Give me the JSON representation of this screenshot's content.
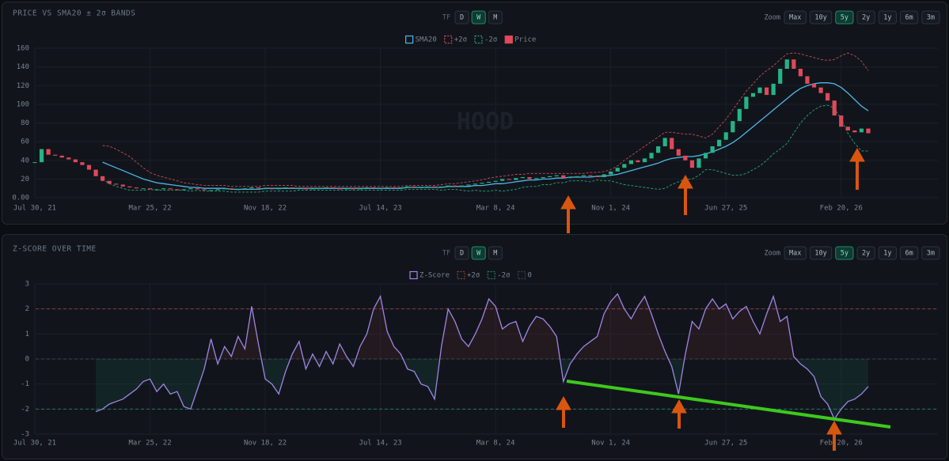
{
  "chart_data": [
    {
      "type": "candlestick",
      "title": "PRICE VS SMA20 ± 2σ BANDS",
      "watermark": "HOOD",
      "toolbar": {
        "tf_label": "TF",
        "timeframes": [
          "D",
          "W",
          "M"
        ],
        "active_timeframe": 1,
        "zoom_label": "Zoom",
        "zoom_options": [
          "Max",
          "10y",
          "5y",
          "2y",
          "1y",
          "6m",
          "3m"
        ],
        "active_zoom": 2
      },
      "categories": [
        "Jul 30, 21",
        null,
        null,
        null,
        null,
        null,
        null,
        null,
        null,
        null,
        null,
        null,
        null,
        null,
        null,
        null,
        null,
        "Mar 25, 22",
        null,
        null,
        null,
        null,
        null,
        null,
        null,
        null,
        null,
        null,
        null,
        null,
        null,
        null,
        null,
        null,
        "Nov 18, 22",
        null,
        null,
        null,
        null,
        null,
        null,
        null,
        null,
        null,
        null,
        null,
        null,
        null,
        null,
        null,
        null,
        "Jul 14, 23",
        null,
        null,
        null,
        null,
        null,
        null,
        null,
        null,
        null,
        null,
        null,
        null,
        null,
        null,
        null,
        null,
        "Mar 8, 24",
        null,
        null,
        null,
        null,
        null,
        null,
        null,
        null,
        null,
        null,
        null,
        null,
        null,
        null,
        null,
        null,
        "Nov 1, 24",
        null,
        null,
        null,
        null,
        null,
        null,
        null,
        null,
        null,
        null,
        null,
        null,
        null,
        null,
        null,
        null,
        "Jun 27, 25",
        null,
        null,
        null,
        null,
        null,
        null,
        null,
        null,
        null,
        null,
        null,
        null,
        null,
        null,
        null,
        null,
        "Feb 20, 26",
        null,
        null,
        null,
        null
      ],
      "ylim": [
        0,
        160
      ],
      "yticks": [
        {
          "value": 0,
          "label": "0.00"
        },
        20,
        40,
        60,
        80,
        100,
        120,
        140,
        160
      ],
      "grid": true,
      "series": [
        {
          "name": "SMA20",
          "color": "#4fb6e8",
          "dashed": false,
          "values": [
            null,
            null,
            null,
            null,
            null,
            null,
            null,
            null,
            null,
            null,
            38,
            35,
            32,
            29,
            26,
            23,
            20,
            18,
            16,
            15,
            14,
            13,
            12,
            11,
            11,
            10,
            10,
            10,
            10,
            9,
            9,
            9,
            9,
            9,
            10,
            10,
            10,
            10,
            10,
            10,
            10,
            10,
            10,
            10,
            10,
            10,
            10,
            10,
            10,
            10,
            10,
            10,
            10,
            10,
            10,
            11,
            11,
            11,
            11,
            11,
            11,
            12,
            12,
            12,
            12,
            13,
            13,
            14,
            15,
            15,
            16,
            17,
            18,
            19,
            19,
            20,
            20,
            21,
            21,
            22,
            22,
            22,
            22,
            23,
            23,
            24,
            25,
            27,
            29,
            31,
            33,
            35,
            37,
            40,
            42,
            43,
            44,
            44,
            45,
            47,
            49,
            52,
            55,
            59,
            64,
            70,
            76,
            82,
            88,
            94,
            100,
            106,
            112,
            117,
            120,
            122,
            123,
            123,
            122,
            118,
            112,
            105,
            98,
            93
          ]
        },
        {
          "name": "+2σ",
          "color": "#c94a55",
          "dashed": true,
          "values": [
            null,
            null,
            null,
            null,
            null,
            null,
            null,
            null,
            null,
            null,
            56,
            55,
            52,
            48,
            44,
            38,
            32,
            27,
            24,
            22,
            20,
            18,
            16,
            15,
            14,
            13,
            13,
            13,
            13,
            12,
            12,
            12,
            12,
            12,
            13,
            13,
            13,
            13,
            13,
            12,
            12,
            12,
            12,
            12,
            12,
            12,
            12,
            12,
            12,
            12,
            12,
            12,
            12,
            12,
            12,
            13,
            13,
            13,
            13,
            13,
            14,
            15,
            15,
            16,
            17,
            18,
            19,
            21,
            22,
            23,
            24,
            25,
            25,
            26,
            26,
            26,
            26,
            26,
            26,
            26,
            26,
            26,
            27,
            27,
            28,
            30,
            34,
            40,
            45,
            50,
            55,
            60,
            65,
            70,
            70,
            69,
            68,
            68,
            66,
            64,
            68,
            76,
            84,
            94,
            104,
            114,
            122,
            130,
            136,
            141,
            148,
            154,
            155,
            154,
            152,
            150,
            148,
            147,
            148,
            152,
            155,
            152,
            146,
            136
          ]
        },
        {
          "name": "-2σ",
          "color": "#2aa27a",
          "dashed": true,
          "values": [
            null,
            null,
            null,
            null,
            null,
            null,
            null,
            null,
            null,
            null,
            20,
            15,
            12,
            10,
            8,
            8,
            8,
            9,
            8,
            8,
            8,
            8,
            8,
            7,
            8,
            7,
            7,
            7,
            7,
            6,
            6,
            6,
            6,
            6,
            7,
            7,
            7,
            7,
            7,
            8,
            8,
            8,
            8,
            8,
            8,
            8,
            8,
            8,
            8,
            8,
            8,
            8,
            8,
            8,
            8,
            9,
            9,
            9,
            9,
            9,
            8,
            9,
            9,
            8,
            7,
            8,
            7,
            7,
            8,
            7,
            8,
            9,
            11,
            12,
            12,
            14,
            14,
            16,
            16,
            18,
            18,
            18,
            17,
            19,
            18,
            18,
            16,
            14,
            13,
            12,
            11,
            10,
            9,
            10,
            14,
            17,
            20,
            20,
            24,
            30,
            30,
            28,
            26,
            24,
            24,
            26,
            30,
            34,
            40,
            47,
            52,
            58,
            69,
            80,
            88,
            94,
            98,
            99,
            96,
            84,
            69,
            58,
            50,
            50
          ]
        },
        {
          "name": "Price",
          "color": "#e0495a",
          "up_color": "#26b386",
          "down_color": "#e0495a",
          "values": [
            38,
            52,
            46,
            45,
            43,
            41,
            38,
            35,
            30,
            23,
            18,
            15,
            14,
            12,
            11,
            10,
            10,
            9,
            9,
            10,
            9,
            8,
            9,
            10,
            9,
            8,
            8,
            9,
            10,
            9,
            9,
            10,
            11,
            10,
            10,
            9,
            10,
            11,
            10,
            10,
            9,
            10,
            10,
            11,
            10,
            9,
            10,
            9,
            10,
            11,
            10,
            10,
            11,
            10,
            11,
            12,
            11,
            11,
            12,
            11,
            12,
            13,
            12,
            13,
            14,
            15,
            16,
            17,
            18,
            20,
            19,
            21,
            22,
            20,
            21,
            22,
            23,
            24,
            21,
            22,
            23,
            24,
            23,
            22,
            25,
            28,
            32,
            36,
            40,
            38,
            42,
            48,
            55,
            64,
            52,
            45,
            40,
            32,
            42,
            48,
            55,
            62,
            70,
            82,
            95,
            108,
            112,
            118,
            110,
            122,
            138,
            148,
            138,
            130,
            122,
            118,
            112,
            104,
            88,
            76,
            72,
            70,
            74,
            69
          ]
        }
      ]
    },
    {
      "type": "line",
      "title": "Z-SCORE OVER TIME",
      "toolbar": {
        "tf_label": "TF",
        "timeframes": [
          "D",
          "W",
          "M"
        ],
        "active_timeframe": 1,
        "zoom_label": "Zoom",
        "zoom_options": [
          "Max",
          "10y",
          "5y",
          "2y",
          "1y",
          "6m",
          "3m"
        ],
        "active_zoom": 2
      },
      "categories": [
        "Jul 30, 21",
        null,
        null,
        null,
        null,
        null,
        null,
        null,
        null,
        null,
        null,
        null,
        null,
        null,
        null,
        null,
        null,
        "Mar 25, 22",
        null,
        null,
        null,
        null,
        null,
        null,
        null,
        null,
        null,
        null,
        null,
        null,
        null,
        null,
        null,
        null,
        "Nov 18, 22",
        null,
        null,
        null,
        null,
        null,
        null,
        null,
        null,
        null,
        null,
        null,
        null,
        null,
        null,
        null,
        null,
        "Jul 14, 23",
        null,
        null,
        null,
        null,
        null,
        null,
        null,
        null,
        null,
        null,
        null,
        null,
        null,
        null,
        null,
        null,
        "Mar 8, 24",
        null,
        null,
        null,
        null,
        null,
        null,
        null,
        null,
        null,
        null,
        null,
        null,
        null,
        null,
        null,
        null,
        "Nov 1, 24",
        null,
        null,
        null,
        null,
        null,
        null,
        null,
        null,
        null,
        null,
        null,
        null,
        null,
        null,
        null,
        null,
        "Jun 27, 25",
        null,
        null,
        null,
        null,
        null,
        null,
        null,
        null,
        null,
        null,
        null,
        null,
        null,
        null,
        null,
        null,
        "Feb 20, 26",
        null,
        null,
        null,
        null
      ],
      "ylim": [
        -3,
        3
      ],
      "yticks": [
        -3,
        -2,
        -1,
        0,
        1,
        2,
        3
      ],
      "grid": true,
      "series": [
        {
          "name": "Z-Score",
          "color": "#9d86e6",
          "values": [
            null,
            null,
            null,
            null,
            null,
            null,
            null,
            null,
            null,
            -2.1,
            -2.0,
            -1.8,
            -1.7,
            -1.6,
            -1.4,
            -1.2,
            -0.9,
            -0.8,
            -1.3,
            -1.0,
            -1.4,
            -1.3,
            -1.9,
            -2.0,
            -1.2,
            -0.4,
            0.8,
            -0.2,
            0.5,
            0.1,
            0.9,
            0.4,
            2.1,
            0.6,
            -0.8,
            -1.0,
            -1.4,
            -0.5,
            0.2,
            0.7,
            -0.4,
            0.2,
            -0.3,
            0.3,
            -0.2,
            0.6,
            0.1,
            -0.3,
            0.5,
            1.0,
            2.0,
            2.5,
            1.1,
            0.5,
            0.2,
            -0.4,
            -0.5,
            -1.0,
            -1.1,
            -1.6,
            0.5,
            2.0,
            1.5,
            0.8,
            0.5,
            1.0,
            1.6,
            2.4,
            2.1,
            1.2,
            1.4,
            1.5,
            0.7,
            1.3,
            1.7,
            1.6,
            1.3,
            0.9,
            -0.9,
            -0.2,
            0.2,
            0.5,
            0.7,
            0.9,
            1.8,
            2.3,
            2.6,
            2.0,
            1.6,
            2.1,
            2.5,
            1.8,
            1.0,
            0.3,
            -0.3,
            -1.4,
            0.2,
            1.5,
            1.2,
            2.0,
            2.4,
            2.0,
            2.2,
            1.6,
            1.9,
            2.1,
            1.5,
            1.0,
            1.8,
            2.5,
            1.5,
            1.7,
            0.1,
            -0.2,
            -0.4,
            -0.7,
            -1.5,
            -1.8,
            -2.4,
            -2.0,
            -1.7,
            -1.6,
            -1.4,
            -1.1
          ]
        }
      ],
      "reference_lines": [
        {
          "name": "+2σ",
          "value": 2,
          "color": "#8a3a45"
        },
        {
          "name": "-2σ",
          "value": -2,
          "color": "#1f7a5c"
        },
        {
          "name": "0",
          "value": 0,
          "color": "#3a414c"
        }
      ]
    }
  ]
}
